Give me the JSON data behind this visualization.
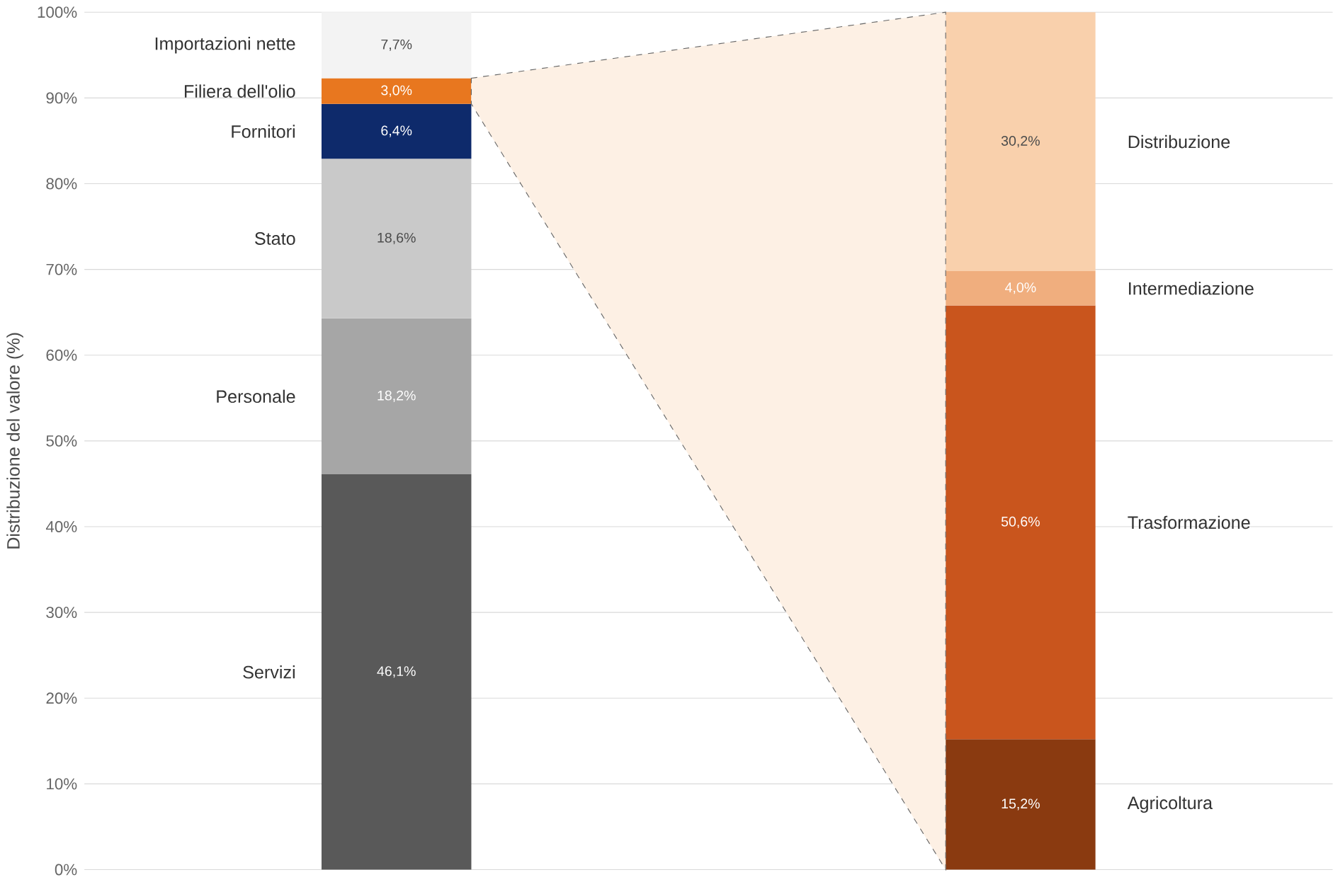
{
  "chart_data": {
    "type": "bar",
    "stacked": true,
    "ylabel": "Distribuzione del valore (%)",
    "categories": [
      null,
      null
    ],
    "ylim": [
      0,
      100
    ],
    "yticks": [
      {
        "value": 0,
        "label": "0%"
      },
      {
        "value": 10,
        "label": "10%"
      },
      {
        "value": 20,
        "label": "20%"
      },
      {
        "value": 30,
        "label": "30%"
      },
      {
        "value": 40,
        "label": "40%"
      },
      {
        "value": 50,
        "label": "50%"
      },
      {
        "value": 60,
        "label": "60%"
      },
      {
        "value": 70,
        "label": "70%"
      },
      {
        "value": 80,
        "label": "80%"
      },
      {
        "value": 90,
        "label": "90%"
      },
      {
        "value": 100,
        "label": "100%"
      }
    ],
    "grid": "y",
    "legend": false,
    "series": [
      {
        "name": "Servizi",
        "color": "#595959",
        "values": [
          46.1,
          null
        ],
        "value_labels": [
          "46,1%",
          null
        ]
      },
      {
        "name": "Personale",
        "color": "#a6a6a6",
        "values": [
          18.2,
          null
        ],
        "value_labels": [
          "18,2%",
          null
        ]
      },
      {
        "name": "Stato",
        "color": "#c9c9c9",
        "values": [
          18.6,
          null
        ],
        "value_labels": [
          "18,6%",
          null
        ]
      },
      {
        "name": "Fornitori",
        "color": "#0e2a6b",
        "values": [
          6.4,
          null
        ],
        "value_labels": [
          "6,4%",
          null
        ]
      },
      {
        "name": "Filiera dell'olio",
        "color": "#e8771f",
        "values": [
          3.0,
          null
        ],
        "value_labels": [
          "3,0%",
          null
        ]
      },
      {
        "name": "Importazioni nette",
        "color": "#f3f3f3",
        "values": [
          7.7,
          null
        ],
        "value_labels": [
          "7,7%",
          null
        ]
      },
      {
        "name": "Agricoltura",
        "color": "#8a3a10",
        "values": [
          null,
          15.2
        ],
        "value_labels": [
          null,
          "15,2%"
        ]
      },
      {
        "name": "Trasformazione",
        "color": "#c9551d",
        "values": [
          null,
          50.6
        ],
        "value_labels": [
          null,
          "50,6%"
        ]
      },
      {
        "name": "Intermediazione",
        "color": "#f0ae7e",
        "values": [
          null,
          4.0
        ],
        "value_labels": [
          null,
          "4,0%"
        ]
      },
      {
        "name": "Distribuzione",
        "color": "#f9d0ac",
        "values": [
          null,
          30.2
        ],
        "value_labels": [
          null,
          "30,2%"
        ]
      }
    ]
  }
}
